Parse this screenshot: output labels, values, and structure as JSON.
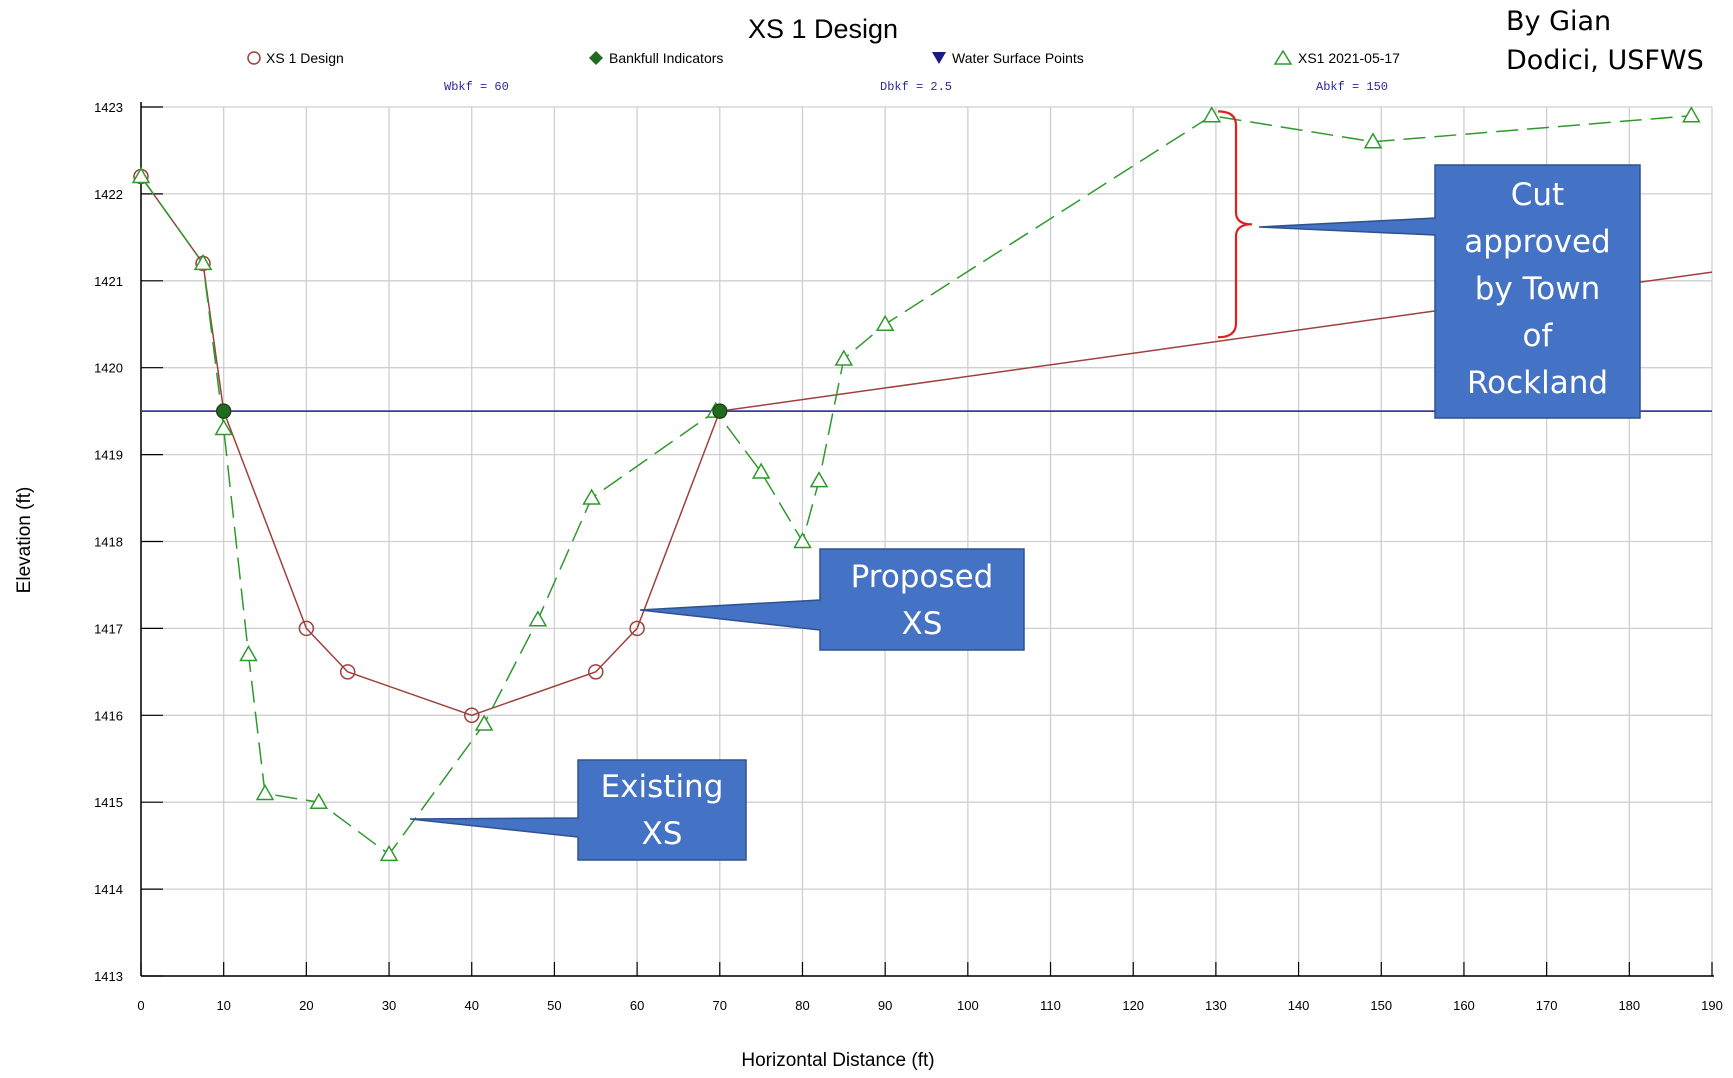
{
  "author": {
    "line1": "By Gian",
    "line2": "Dodici, USFWS"
  },
  "chart_data": {
    "type": "line",
    "title": "XS 1 Design",
    "xlabel": "Horizontal Distance (ft)",
    "ylabel": "Elevation (ft)",
    "xlim": [
      0,
      190
    ],
    "ylim": [
      1413,
      1423
    ],
    "x_ticks": [
      0,
      10,
      20,
      30,
      40,
      50,
      60,
      70,
      80,
      90,
      100,
      110,
      120,
      130,
      140,
      150,
      160,
      170,
      180,
      190
    ],
    "y_ticks": [
      1413,
      1414,
      1415,
      1416,
      1417,
      1418,
      1419,
      1420,
      1421,
      1422,
      1423
    ],
    "grid": true,
    "legend": [
      "XS 1 Design",
      "Bankfull Indicators",
      "Water Surface Points",
      "XS1 2021-05-17"
    ],
    "stats": [
      "Wbkf = 60",
      "Dbkf = 2.5",
      "Abkf = 150"
    ],
    "series": [
      {
        "name": "XS 1 Design",
        "color": "#a0403c",
        "marker": "circle",
        "points": [
          [
            0,
            1422.2
          ],
          [
            7.5,
            1421.2
          ],
          [
            10,
            1419.5
          ],
          [
            20,
            1417.0
          ],
          [
            25,
            1416.5
          ],
          [
            40,
            1416.0
          ],
          [
            55,
            1416.5
          ],
          [
            60,
            1417.0
          ],
          [
            70,
            1419.5
          ],
          [
            190,
            1421.1
          ]
        ]
      },
      {
        "name": "XS1 2021-05-17",
        "color": "#2e9a2e",
        "marker": "triangle",
        "dashed": true,
        "points": [
          [
            0,
            1422.2
          ],
          [
            7.5,
            1421.2
          ],
          [
            10,
            1419.3
          ],
          [
            13,
            1416.7
          ],
          [
            15,
            1415.1
          ],
          [
            21.5,
            1415.0
          ],
          [
            30,
            1414.4
          ],
          [
            41.5,
            1415.9
          ],
          [
            48,
            1417.1
          ],
          [
            54.5,
            1418.5
          ],
          [
            69.5,
            1419.5
          ],
          [
            75,
            1418.8
          ],
          [
            80,
            1418.0
          ],
          [
            82,
            1418.7
          ],
          [
            85,
            1420.1
          ],
          [
            90,
            1420.5
          ],
          [
            129.5,
            1422.9
          ],
          [
            149,
            1422.6
          ],
          [
            187.5,
            1422.9
          ]
        ]
      },
      {
        "name": "Bankfull Indicators",
        "color": "#1f6b1f",
        "marker": "diamond",
        "points": [
          [
            10,
            1419.5
          ],
          [
            70,
            1419.5
          ]
        ]
      },
      {
        "name": "Water Surface Points",
        "color": "#1a1a80",
        "marker": "triangle-down",
        "level": 1419.5
      }
    ],
    "annotations": [
      "Cut approved by Town of Rockland",
      "Proposed XS",
      "Existing XS"
    ]
  },
  "callouts": {
    "cut": [
      "Cut",
      "approved",
      "by Town",
      "of",
      "Rockland"
    ],
    "proposed": [
      "Proposed",
      "XS"
    ],
    "existing": [
      "Existing",
      "XS"
    ]
  },
  "colors": {
    "callout_fill": "#4472c4",
    "callout_border": "#2f528f",
    "water": "#3b3b9e",
    "bracket": "#e02020"
  }
}
